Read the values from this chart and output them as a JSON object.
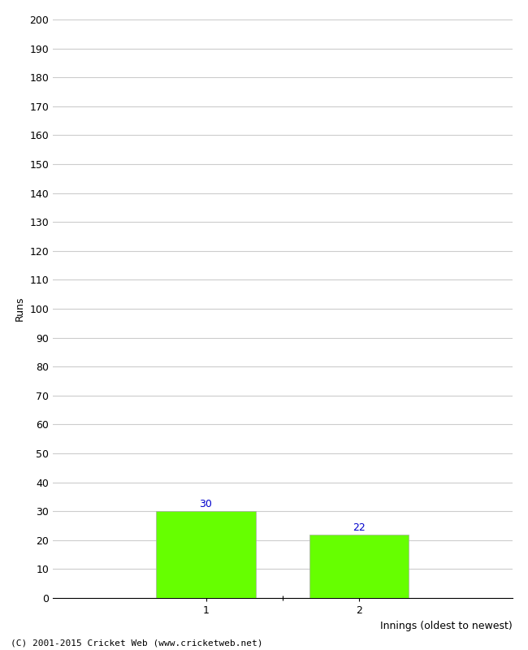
{
  "categories": [
    "1",
    "2"
  ],
  "values": [
    30,
    22
  ],
  "bar_color": "#66ff00",
  "bar_edge_color": "#aaaaaa",
  "ylabel": "Runs",
  "xlabel": "Innings (oldest to newest)",
  "ylim": [
    0,
    200
  ],
  "yticks": [
    0,
    10,
    20,
    30,
    40,
    50,
    60,
    70,
    80,
    90,
    100,
    110,
    120,
    130,
    140,
    150,
    160,
    170,
    180,
    190,
    200
  ],
  "value_label_color": "#0000cc",
  "value_label_fontsize": 9,
  "footer": "(C) 2001-2015 Cricket Web (www.cricketweb.net)",
  "background_color": "#ffffff",
  "grid_color": "#cccccc",
  "bar_width": 0.65,
  "xlim": [
    0,
    3
  ]
}
